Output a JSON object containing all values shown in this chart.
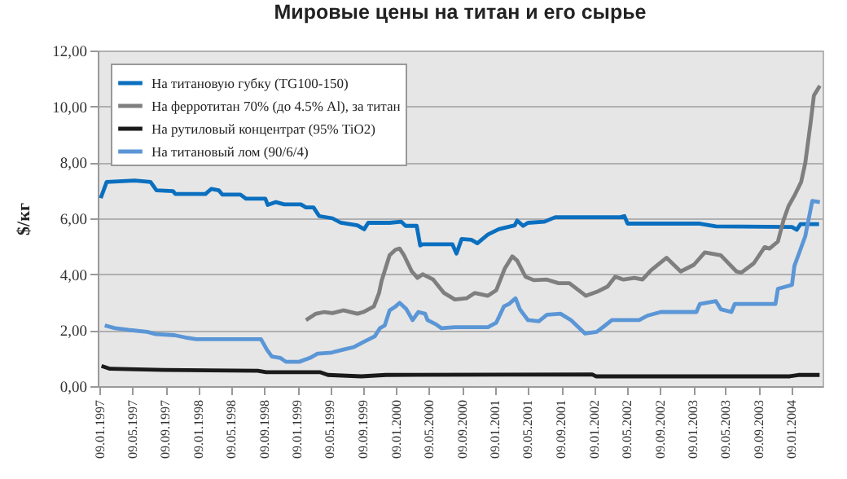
{
  "chart_data": {
    "type": "line",
    "title": "Мировые цены на титан и его сырье",
    "ylabel": "$/кг",
    "xlim": [
      "1997-01-01",
      "2004-05-01"
    ],
    "xticks": [
      {
        "value": "1997-01-09",
        "label": "09.01.1997"
      },
      {
        "value": "1997-05-09",
        "label": "09.05.1997"
      },
      {
        "value": "1997-09-09",
        "label": "09.09.1997"
      },
      {
        "value": "1998-01-09",
        "label": "09.01.1998"
      },
      {
        "value": "1998-05-09",
        "label": "09.05.1998"
      },
      {
        "value": "1998-09-09",
        "label": "09.09.1998"
      },
      {
        "value": "1999-01-09",
        "label": "09.01.1999"
      },
      {
        "value": "1999-05-09",
        "label": "09.05.1999"
      },
      {
        "value": "1999-09-09",
        "label": "09.09.1999"
      },
      {
        "value": "2000-01-09",
        "label": "09.01.2000"
      },
      {
        "value": "2000-05-09",
        "label": "09.05.2000"
      },
      {
        "value": "2000-09-09",
        "label": "09.09.2000"
      },
      {
        "value": "2001-01-09",
        "label": "09.01.2001"
      },
      {
        "value": "2001-05-09",
        "label": "09.05.2001"
      },
      {
        "value": "2001-09-09",
        "label": "09.09.2001"
      },
      {
        "value": "2002-01-09",
        "label": "09.01.2002"
      },
      {
        "value": "2002-05-09",
        "label": "09.05.2002"
      },
      {
        "value": "2002-09-09",
        "label": "09.09.2002"
      },
      {
        "value": "2003-01-09",
        "label": "09.01.2003"
      },
      {
        "value": "2003-05-09",
        "label": "09.05.2003"
      },
      {
        "value": "2003-09-09",
        "label": "09.09.2003"
      },
      {
        "value": "2004-01-09",
        "label": "09.01.2004"
      }
    ],
    "ylim": [
      0,
      12
    ],
    "yticks": [
      {
        "value": 0,
        "label": "0,00"
      },
      {
        "value": 2,
        "label": "2,00"
      },
      {
        "value": 4,
        "label": "4,00"
      },
      {
        "value": 6,
        "label": "6,00"
      },
      {
        "value": 8,
        "label": "8,00"
      },
      {
        "value": 10,
        "label": "10,00"
      },
      {
        "value": 12,
        "label": "12,00"
      }
    ],
    "grid": "y",
    "legend": "top left",
    "line_style": "solid",
    "marker": "none",
    "series": [
      {
        "name": "На титановую губку (TG100-150)",
        "color": "#0b6fbf",
        "x": [
          "1997-01-12",
          "1997-02-03",
          "1997-05-18",
          "1997-07-15",
          "1997-08-06",
          "1997-10-06",
          "1997-10-15",
          "1998-02-03",
          "1998-02-24",
          "1998-03-24",
          "1998-04-06",
          "1998-06-12",
          "1998-07-03",
          "1998-09-12",
          "1998-09-21",
          "1998-10-21",
          "1998-11-21",
          "1999-01-21",
          "1999-02-09",
          "1999-03-09",
          "1999-03-30",
          "1999-05-18",
          "1999-06-18",
          "1999-08-18",
          "1999-09-12",
          "1999-09-27",
          "1999-12-15",
          "2000-01-27",
          "2000-02-12",
          "2000-03-24",
          "2000-04-06",
          "2000-04-15",
          "2000-08-03",
          "2000-08-18",
          "2000-09-06",
          "2000-10-12",
          "2000-11-03",
          "2000-12-12",
          "2001-01-21",
          "2001-03-21",
          "2001-03-30",
          "2001-04-21",
          "2001-05-09",
          "2001-07-09",
          "2001-08-18",
          "2002-04-15",
          "2002-04-30",
          "2002-05-12",
          "2003-02-03",
          "2003-04-03",
          "2004-01-09",
          "2004-01-27",
          "2004-02-09",
          "2004-04-18"
        ],
        "values": [
          6.72,
          7.3,
          7.35,
          7.3,
          7.0,
          6.97,
          6.87,
          6.87,
          7.05,
          7.0,
          6.85,
          6.85,
          6.7,
          6.7,
          6.48,
          6.58,
          6.5,
          6.5,
          6.39,
          6.39,
          6.08,
          6.0,
          5.84,
          5.75,
          5.61,
          5.84,
          5.84,
          5.88,
          5.73,
          5.73,
          5.03,
          5.07,
          5.07,
          4.74,
          5.26,
          5.23,
          5.11,
          5.42,
          5.61,
          5.75,
          5.92,
          5.73,
          5.84,
          5.88,
          6.04,
          6.04,
          6.08,
          5.81,
          5.81,
          5.71,
          5.69,
          5.59,
          5.79,
          5.79
        ]
      },
      {
        "name": "На ферротитан 70% (до 4.5% Al), за титан",
        "color": "#7f7f7f",
        "x": [
          "1999-02-09",
          "1999-03-18",
          "1999-04-18",
          "1999-05-18",
          "1999-06-27",
          "1999-08-18",
          "1999-09-09",
          "1999-10-18",
          "1999-11-06",
          "1999-11-15",
          "1999-12-15",
          "2000-01-06",
          "2000-01-21",
          "2000-02-06",
          "2000-03-06",
          "2000-03-27",
          "2000-04-15",
          "2000-05-24",
          "2000-07-03",
          "2000-08-12",
          "2000-09-24",
          "2000-10-24",
          "2000-12-12",
          "2001-01-12",
          "2001-02-12",
          "2001-03-12",
          "2001-03-30",
          "2001-04-30",
          "2001-05-30",
          "2001-07-18",
          "2001-08-30",
          "2001-10-09",
          "2001-12-09",
          "2002-01-18",
          "2002-02-27",
          "2002-03-27",
          "2002-04-27",
          "2002-06-06",
          "2002-07-06",
          "2002-08-06",
          "2002-10-03",
          "2002-11-24",
          "2003-01-12",
          "2003-02-21",
          "2003-04-21",
          "2003-06-18",
          "2003-07-06",
          "2003-08-21",
          "2003-09-30",
          "2003-10-18",
          "2003-11-18",
          "2003-12-09",
          "2003-12-27",
          "2004-01-18",
          "2004-02-12",
          "2004-02-27",
          "2004-03-18",
          "2004-03-30",
          "2004-04-21"
        ],
        "values": [
          2.36,
          2.59,
          2.65,
          2.61,
          2.71,
          2.59,
          2.65,
          2.85,
          3.33,
          3.75,
          4.68,
          4.88,
          4.92,
          4.68,
          4.1,
          3.87,
          4.0,
          3.81,
          3.33,
          3.1,
          3.14,
          3.33,
          3.23,
          3.43,
          4.2,
          4.64,
          4.49,
          3.91,
          3.79,
          3.81,
          3.68,
          3.68,
          3.23,
          3.37,
          3.56,
          3.91,
          3.81,
          3.87,
          3.81,
          4.14,
          4.59,
          4.1,
          4.34,
          4.78,
          4.68,
          4.1,
          4.06,
          4.39,
          4.97,
          4.92,
          5.17,
          5.94,
          6.43,
          6.81,
          7.3,
          7.97,
          9.43,
          10.39,
          10.74
        ]
      },
      {
        "name": "На рутиловый концентрат (95% TiO2)",
        "color": "#1a1a1a",
        "x": [
          "1997-01-15",
          "1997-02-15",
          "1997-09-01",
          "1998-08-15",
          "1998-09-15",
          "1999-04-01",
          "1999-05-01",
          "1999-09-01",
          "1999-12-01",
          "2002-01-01",
          "2002-01-15",
          "2004-01-01",
          "2004-02-01",
          "2004-04-20"
        ],
        "values": [
          0.72,
          0.62,
          0.58,
          0.55,
          0.5,
          0.5,
          0.4,
          0.35,
          0.4,
          0.42,
          0.35,
          0.35,
          0.4,
          0.4
        ]
      },
      {
        "name": "На титановый лом (90/6/4)",
        "color": "#5b96d6",
        "x": [
          "1997-01-27",
          "1997-03-06",
          "1997-04-24",
          "1997-07-03",
          "1997-08-03",
          "1997-10-12",
          "1997-11-21",
          "1997-12-30",
          "1998-08-27",
          "1998-09-18",
          "1998-10-06",
          "1998-11-06",
          "1998-11-27",
          "1999-01-15",
          "1999-02-24",
          "1999-03-24",
          "1999-05-15",
          "1999-06-24",
          "1999-08-03",
          "1999-09-12",
          "1999-10-21",
          "1999-11-09",
          "1999-11-27",
          "1999-12-15",
          "2000-01-06",
          "2000-01-21",
          "2000-02-15",
          "2000-03-09",
          "2000-03-30",
          "2000-04-24",
          "2000-05-03",
          "2000-06-03",
          "2000-06-24",
          "2000-08-12",
          "2000-12-12",
          "2001-01-12",
          "2001-02-09",
          "2001-02-28",
          "2001-03-24",
          "2001-04-09",
          "2001-05-09",
          "2001-06-18",
          "2001-07-18",
          "2001-09-06",
          "2001-10-15",
          "2001-12-06",
          "2002-01-18",
          "2002-02-18",
          "2002-03-15",
          "2002-06-24",
          "2002-07-24",
          "2002-09-12",
          "2003-01-21",
          "2003-02-03",
          "2003-04-03",
          "2003-04-21",
          "2003-05-30",
          "2003-06-12",
          "2003-11-09",
          "2003-11-18",
          "2004-01-09",
          "2004-01-18",
          "2004-02-09",
          "2004-02-27",
          "2004-03-24",
          "2004-04-21"
        ],
        "values": [
          2.17,
          2.07,
          2.01,
          1.94,
          1.86,
          1.82,
          1.74,
          1.68,
          1.68,
          1.3,
          1.06,
          1.01,
          0.87,
          0.87,
          1.01,
          1.16,
          1.2,
          1.3,
          1.39,
          1.59,
          1.78,
          2.07,
          2.17,
          2.71,
          2.85,
          2.98,
          2.75,
          2.36,
          2.65,
          2.59,
          2.36,
          2.21,
          2.07,
          2.11,
          2.11,
          2.27,
          2.85,
          2.94,
          3.14,
          2.75,
          2.36,
          2.32,
          2.55,
          2.59,
          2.36,
          1.88,
          1.94,
          2.17,
          2.36,
          2.36,
          2.52,
          2.65,
          2.65,
          2.94,
          3.04,
          2.75,
          2.65,
          2.94,
          2.94,
          3.48,
          3.62,
          4.3,
          4.88,
          5.36,
          6.62,
          6.58
        ]
      }
    ]
  }
}
